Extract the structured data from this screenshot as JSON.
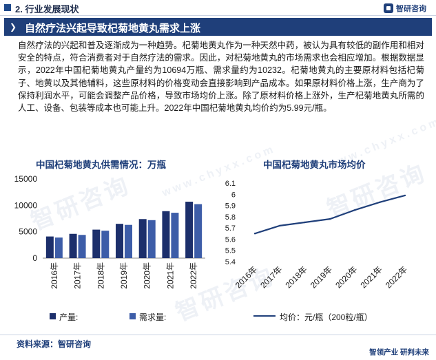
{
  "header": {
    "section_title": "2. 行业发展现状",
    "brand_name": "智研咨询"
  },
  "headline": "自然疗法兴起导致杞菊地黄丸需求上涨",
  "paragraph": "自然疗法的兴起和普及逐渐成为一种趋势。杞菊地黄丸作为一种天然中药，被认为具有较低的副作用和相对安全的特点，符合消费者对于自然疗法的需求。因此，对杞菊地黄丸的市场需求也会相应增加。根据数据显示，2022年中国杞菊地黄丸产量约为10694万瓶、需求量约为10232。杞菊地黄丸的主要原材料包括杞菊子、地黄以及其他辅料，这些原材料的价格变动会直接影响到产品成本。如果原材料价格上涨，生产商为了保持利润水平，可能会调整产品价格，导致市场均价上涨。除了原材料价格上涨外，生产杞菊地黄丸所需的人工、设备、包装等成本也可能上升。2022年中国杞菊地黄丸均价约为5.99元/瓶。",
  "watermark": "智研咨询",
  "watermark_url": "www.chyxx.com",
  "colors": {
    "navy": "#1f3f7a",
    "production": "#1c2f6b",
    "demand": "#3d5da8",
    "line": "#1f3f7a"
  },
  "chart_data": [
    {
      "type": "bar",
      "title": "中国杞菊地黄丸供需情况：万瓶",
      "categories": [
        "2016年",
        "2017年",
        "2018年",
        "2019年",
        "2020年",
        "2021年",
        "2022年"
      ],
      "series": [
        {
          "name": "产量:",
          "values": [
            4100,
            4600,
            5400,
            6500,
            7400,
            8900,
            10694
          ]
        },
        {
          "name": "需求量:",
          "values": [
            3900,
            4400,
            5200,
            6300,
            7200,
            8600,
            10232
          ]
        }
      ],
      "y_ticks": [
        "0",
        "5000",
        "10000",
        "15000"
      ],
      "ylim": [
        0,
        15000
      ],
      "grid": false,
      "legend": "bottom"
    },
    {
      "type": "line",
      "title": "中国杞菊地黄丸市场均价",
      "categories": [
        "2016年",
        "2017年",
        "2018年",
        "2019年",
        "2020年",
        "2021年",
        "2022年"
      ],
      "series": [
        {
          "name": "均价：元/瓶（200粒/瓶）",
          "values": [
            5.65,
            5.72,
            5.75,
            5.78,
            5.86,
            5.93,
            5.99
          ]
        }
      ],
      "y_ticks": [
        "5.4",
        "5.5",
        "5.6",
        "5.7",
        "5.8",
        "5.9",
        "6",
        "6.1"
      ],
      "ylim": [
        5.4,
        6.1
      ],
      "grid": false,
      "legend": "bottom"
    }
  ],
  "source": "资料来源：智研咨询",
  "footer_brand": "智领产业  研判未来"
}
